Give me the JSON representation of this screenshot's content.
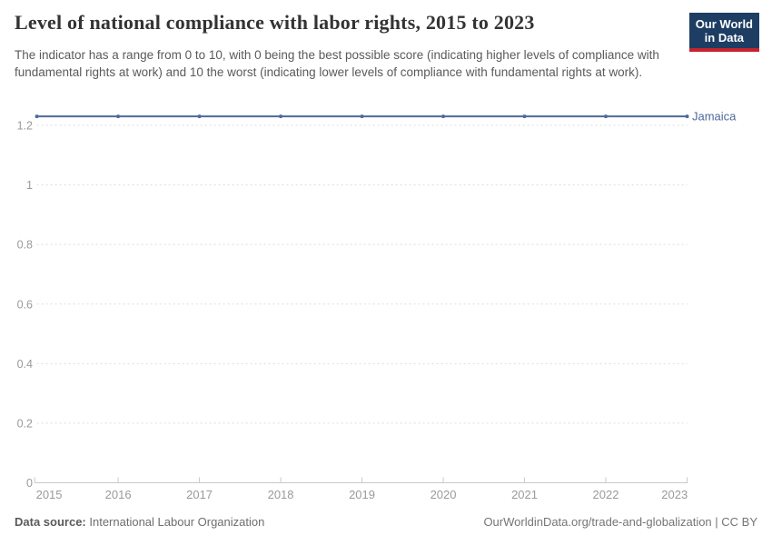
{
  "header": {
    "title": "Level of national compliance with labor rights, 2015 to 2023",
    "subtitle": "The indicator has a range from 0 to 10, with 0 being the best possible score (indicating higher levels of compliance with fundamental rights at work) and 10 the worst (indicating lower levels of compliance with fundamental rights at work).",
    "logo": {
      "line1": "Our World",
      "line2": "in Data",
      "bg_color": "#1D3D63",
      "bar_color": "#C5232D"
    }
  },
  "chart_data": {
    "type": "line",
    "title": "Level of national compliance with labor rights, 2015 to 2023",
    "x": [
      2015,
      2016,
      2017,
      2018,
      2019,
      2020,
      2021,
      2022,
      2023
    ],
    "series": [
      {
        "name": "Jamaica",
        "values": [
          1.23,
          1.23,
          1.23,
          1.23,
          1.23,
          1.23,
          1.23,
          1.23,
          1.23
        ],
        "color": "#4C6A9C"
      }
    ],
    "xlabel": "",
    "ylabel": "",
    "ylim": [
      0,
      1.23
    ],
    "yticks": [
      0,
      0.2,
      0.4,
      0.6,
      0.8,
      1,
      1.2
    ],
    "xticks": [
      2015,
      2016,
      2017,
      2018,
      2019,
      2020,
      2021,
      2022,
      2023
    ],
    "grid": "horizontal-dashed",
    "legend_position": "end-of-line-label"
  },
  "footer": {
    "source_label": "Data source:",
    "source_value": "International Labour Organization",
    "right_text": "OurWorldinData.org/trade-and-globalization | CC BY"
  }
}
